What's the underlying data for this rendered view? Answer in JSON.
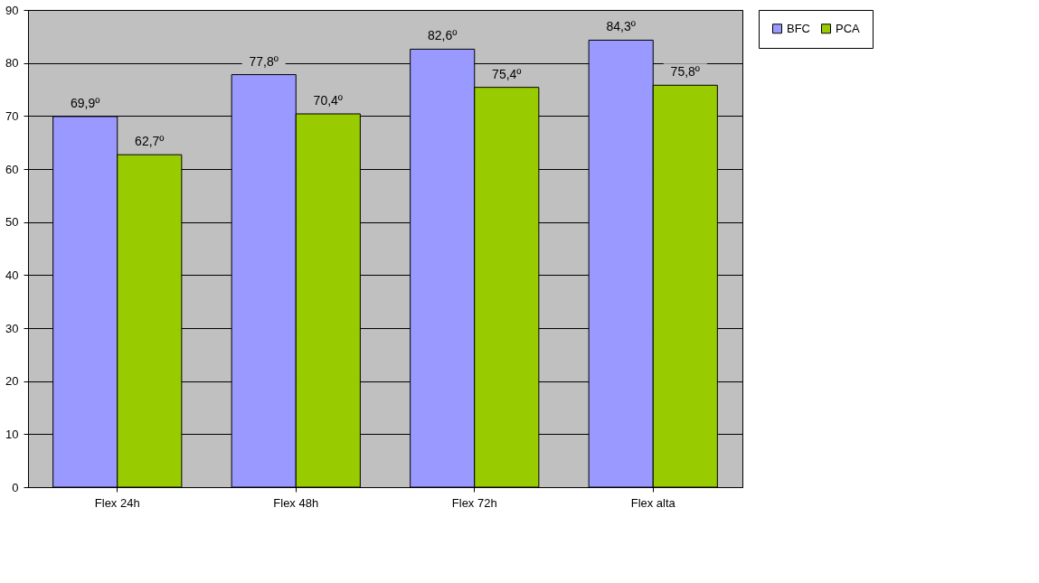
{
  "chart_data": {
    "type": "bar",
    "categories": [
      "Flex 24h",
      "Flex 48h",
      "Flex 72h",
      "Flex alta"
    ],
    "series": [
      {
        "name": "BFC",
        "color": "#9999ff",
        "values": [
          69.9,
          77.8,
          82.6,
          84.3
        ],
        "value_labels": [
          "69,9º",
          "77,8º",
          "82,6º",
          "84,3º"
        ]
      },
      {
        "name": "PCA",
        "color": "#99cc00",
        "values": [
          62.7,
          70.4,
          75.4,
          75.8
        ],
        "value_labels": [
          "62,7º",
          "70,4º",
          "75,4º",
          "75,8º"
        ]
      }
    ],
    "ylim": [
      0,
      90
    ],
    "yticks": [
      0,
      10,
      20,
      30,
      40,
      50,
      60,
      70,
      80,
      90
    ],
    "grid": "y",
    "legend": "right"
  }
}
